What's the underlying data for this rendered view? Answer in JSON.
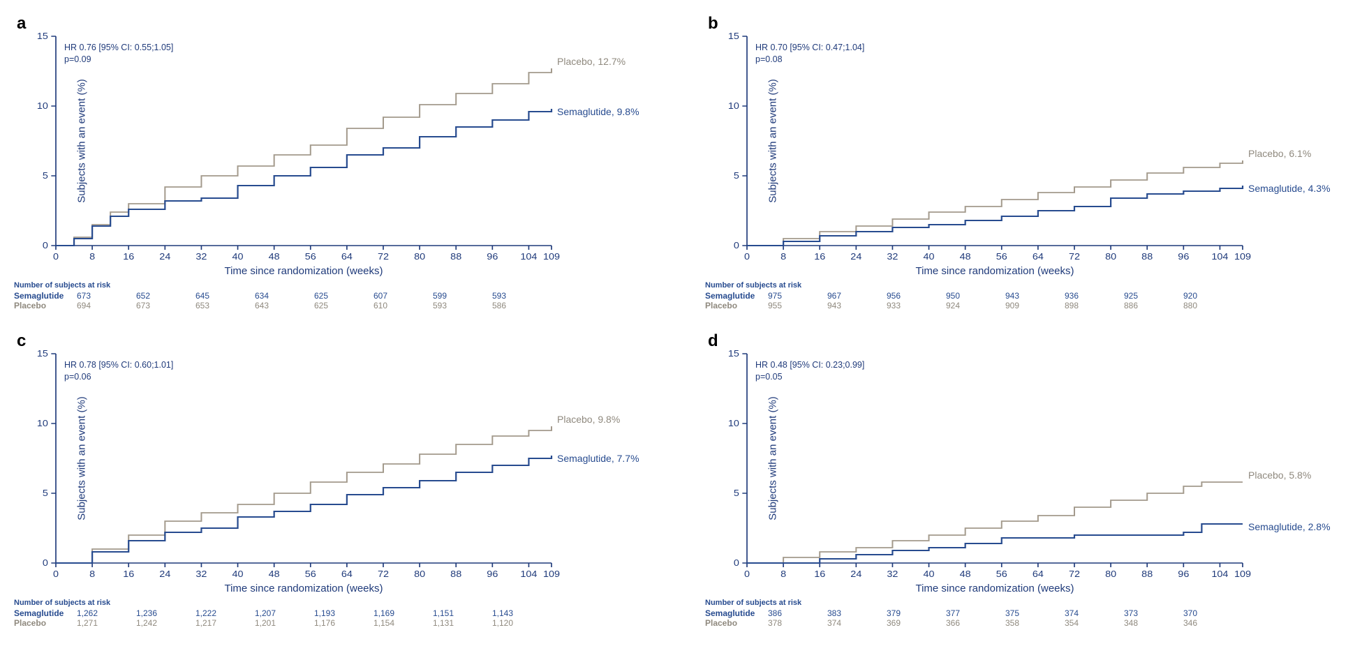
{
  "global": {
    "x_label": "Time since randomization (weeks)",
    "y_label": "Subjects with an event (%)",
    "x_ticks": [
      0,
      8,
      16,
      24,
      32,
      40,
      48,
      56,
      64,
      72,
      80,
      88,
      96,
      104,
      109
    ],
    "x_min": 0,
    "x_max": 109,
    "y_min": 0,
    "y_max": 15,
    "y_ticks": [
      0,
      5,
      10,
      15
    ],
    "colors": {
      "axis": "#1f3a7a",
      "placebo": "#a39a8c",
      "semaglutide": "#274b8f",
      "background": "#ffffff"
    },
    "line_width_placebo": 1.8,
    "line_width_sema": 2.0,
    "risk_header": "Number of subjects at risk",
    "risk_x_positions": [
      0,
      16,
      32,
      48,
      64,
      80,
      96,
      109
    ],
    "series_label_sema": "Semaglutide",
    "series_label_placebo": "Placebo"
  },
  "panels": {
    "a": {
      "letter": "a",
      "hr_line": "HR 0.76 [95% CI: 0.55;1.05]",
      "p_line": "p=0.09",
      "placebo_end_label": "Placebo, 12.7%",
      "sema_end_label": "Semaglutide, 9.8%",
      "placebo_xy": [
        [
          0,
          0
        ],
        [
          4,
          0.6
        ],
        [
          8,
          1.5
        ],
        [
          12,
          2.4
        ],
        [
          16,
          3.0
        ],
        [
          24,
          4.2
        ],
        [
          32,
          5.0
        ],
        [
          40,
          5.7
        ],
        [
          48,
          6.5
        ],
        [
          56,
          7.2
        ],
        [
          64,
          8.4
        ],
        [
          72,
          9.2
        ],
        [
          80,
          10.1
        ],
        [
          88,
          10.9
        ],
        [
          96,
          11.6
        ],
        [
          104,
          12.4
        ],
        [
          109,
          12.7
        ]
      ],
      "sema_xy": [
        [
          0,
          0
        ],
        [
          4,
          0.5
        ],
        [
          8,
          1.4
        ],
        [
          12,
          2.1
        ],
        [
          16,
          2.6
        ],
        [
          24,
          3.2
        ],
        [
          32,
          3.4
        ],
        [
          40,
          4.3
        ],
        [
          48,
          5.0
        ],
        [
          56,
          5.6
        ],
        [
          64,
          6.5
        ],
        [
          72,
          7.0
        ],
        [
          80,
          7.8
        ],
        [
          88,
          8.5
        ],
        [
          96,
          9.0
        ],
        [
          104,
          9.6
        ],
        [
          109,
          9.8
        ]
      ],
      "risk_sema": [
        "673",
        "652",
        "645",
        "634",
        "625",
        "607",
        "599",
        "593"
      ],
      "risk_placebo": [
        "694",
        "673",
        "653",
        "643",
        "625",
        "610",
        "593",
        "586"
      ]
    },
    "b": {
      "letter": "b",
      "hr_line": "HR 0.70 [95% CI: 0.47;1.04]",
      "p_line": "p=0.08",
      "placebo_end_label": "Placebo, 6.1%",
      "sema_end_label": "Semaglutide, 4.3%",
      "placebo_xy": [
        [
          0,
          0
        ],
        [
          8,
          0.5
        ],
        [
          16,
          1.0
        ],
        [
          24,
          1.4
        ],
        [
          32,
          1.9
        ],
        [
          40,
          2.4
        ],
        [
          48,
          2.8
        ],
        [
          56,
          3.3
        ],
        [
          64,
          3.8
        ],
        [
          72,
          4.2
        ],
        [
          80,
          4.7
        ],
        [
          88,
          5.2
        ],
        [
          96,
          5.6
        ],
        [
          104,
          5.9
        ],
        [
          109,
          6.1
        ]
      ],
      "sema_xy": [
        [
          0,
          0
        ],
        [
          8,
          0.3
        ],
        [
          16,
          0.7
        ],
        [
          24,
          1.0
        ],
        [
          32,
          1.3
        ],
        [
          40,
          1.5
        ],
        [
          48,
          1.8
        ],
        [
          56,
          2.1
        ],
        [
          64,
          2.5
        ],
        [
          72,
          2.8
        ],
        [
          80,
          3.4
        ],
        [
          88,
          3.7
        ],
        [
          96,
          3.9
        ],
        [
          104,
          4.1
        ],
        [
          109,
          4.3
        ]
      ],
      "risk_sema": [
        "975",
        "967",
        "956",
        "950",
        "943",
        "936",
        "925",
        "920"
      ],
      "risk_placebo": [
        "955",
        "943",
        "933",
        "924",
        "909",
        "898",
        "886",
        "880"
      ]
    },
    "c": {
      "letter": "c",
      "hr_line": "HR 0.78 [95% CI: 0.60;1.01]",
      "p_line": "p=0.06",
      "placebo_end_label": "Placebo, 9.8%",
      "sema_end_label": "Semaglutide, 7.7%",
      "placebo_xy": [
        [
          0,
          0
        ],
        [
          8,
          1.0
        ],
        [
          16,
          2.0
        ],
        [
          24,
          3.0
        ],
        [
          32,
          3.6
        ],
        [
          40,
          4.2
        ],
        [
          48,
          5.0
        ],
        [
          56,
          5.8
        ],
        [
          64,
          6.5
        ],
        [
          72,
          7.1
        ],
        [
          80,
          7.8
        ],
        [
          88,
          8.5
        ],
        [
          96,
          9.1
        ],
        [
          104,
          9.5
        ],
        [
          109,
          9.8
        ]
      ],
      "sema_xy": [
        [
          0,
          0
        ],
        [
          8,
          0.8
        ],
        [
          16,
          1.6
        ],
        [
          24,
          2.2
        ],
        [
          32,
          2.5
        ],
        [
          40,
          3.3
        ],
        [
          48,
          3.7
        ],
        [
          56,
          4.2
        ],
        [
          64,
          4.9
        ],
        [
          72,
          5.4
        ],
        [
          80,
          5.9
        ],
        [
          88,
          6.5
        ],
        [
          96,
          7.0
        ],
        [
          104,
          7.5
        ],
        [
          109,
          7.7
        ]
      ],
      "risk_sema": [
        "1,262",
        "1,236",
        "1,222",
        "1,207",
        "1,193",
        "1,169",
        "1,151",
        "1,143"
      ],
      "risk_placebo": [
        "1,271",
        "1,242",
        "1,217",
        "1,201",
        "1,176",
        "1,154",
        "1,131",
        "1,120"
      ]
    },
    "d": {
      "letter": "d",
      "hr_line": "HR 0.48 [95% CI: 0.23;0.99]",
      "p_line": "p=0.05",
      "placebo_end_label": "Placebo, 5.8%",
      "sema_end_label": "Semaglutide, 2.8%",
      "placebo_xy": [
        [
          0,
          0
        ],
        [
          8,
          0.4
        ],
        [
          16,
          0.8
        ],
        [
          24,
          1.1
        ],
        [
          32,
          1.6
        ],
        [
          40,
          2.0
        ],
        [
          48,
          2.5
        ],
        [
          56,
          3.0
        ],
        [
          64,
          3.4
        ],
        [
          72,
          4.0
        ],
        [
          80,
          4.5
        ],
        [
          88,
          5.0
        ],
        [
          96,
          5.5
        ],
        [
          100,
          5.8
        ],
        [
          104,
          5.8
        ],
        [
          109,
          5.8
        ]
      ],
      "sema_xy": [
        [
          0,
          0
        ],
        [
          8,
          0.0
        ],
        [
          16,
          0.3
        ],
        [
          24,
          0.6
        ],
        [
          32,
          0.9
        ],
        [
          40,
          1.1
        ],
        [
          48,
          1.4
        ],
        [
          56,
          1.8
        ],
        [
          64,
          1.8
        ],
        [
          72,
          2.0
        ],
        [
          80,
          2.0
        ],
        [
          88,
          2.0
        ],
        [
          96,
          2.2
        ],
        [
          100,
          2.8
        ],
        [
          104,
          2.8
        ],
        [
          109,
          2.8
        ]
      ],
      "risk_sema": [
        "386",
        "383",
        "379",
        "377",
        "375",
        "374",
        "373",
        "370"
      ],
      "risk_placebo": [
        "378",
        "374",
        "369",
        "366",
        "358",
        "354",
        "348",
        "346"
      ]
    }
  }
}
